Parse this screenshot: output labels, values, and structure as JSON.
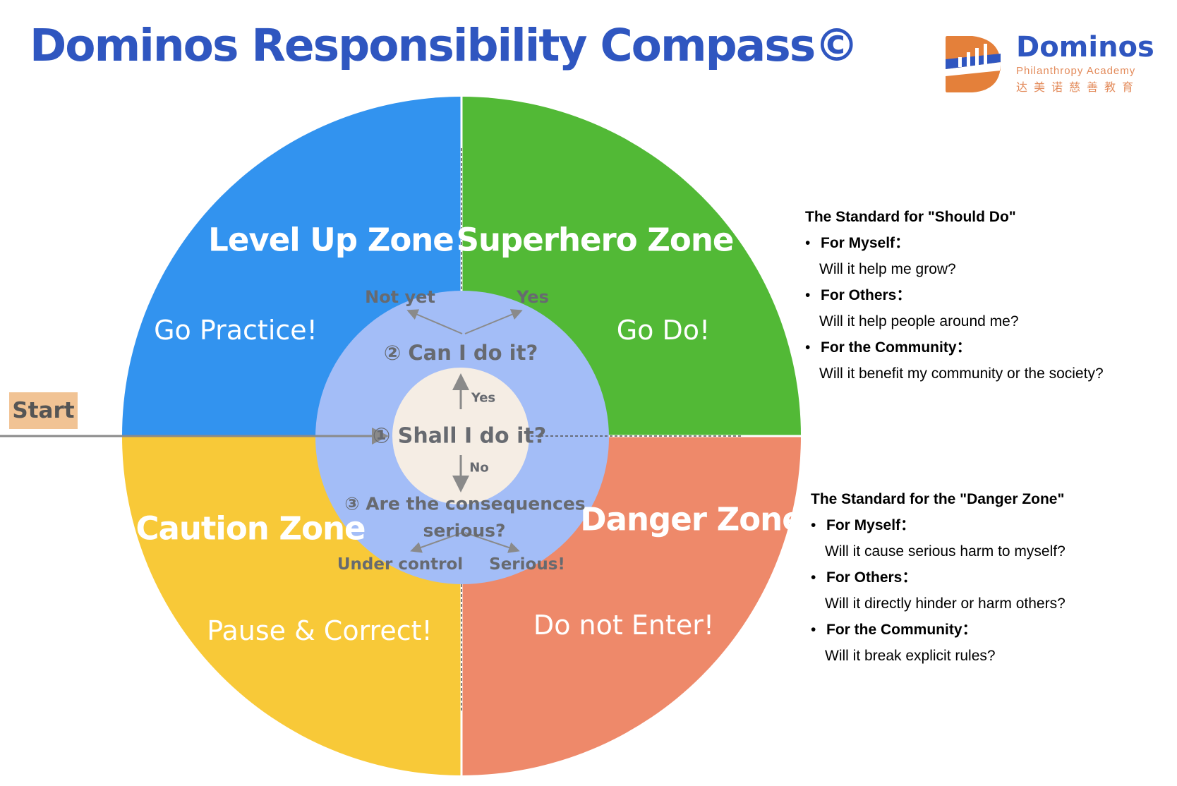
{
  "title": "Dominos Responsibility Compass©",
  "logo": {
    "name": "Dominos",
    "subtitle": "Philanthropy Academy",
    "chinese": "达美诺慈善教育",
    "colors": {
      "orange": "#e4803a",
      "blue": "#2f56c0"
    }
  },
  "start_label": "Start",
  "zones": {
    "level_up": {
      "name": "Level Up Zone",
      "action": "Go Practice!",
      "color": "#3293ef"
    },
    "superhero": {
      "name": "Superhero Zone",
      "action": "Go Do!",
      "color": "#52b936"
    },
    "caution": {
      "name": "Caution Zone",
      "action": "Pause & Correct!",
      "color": "#f8c938"
    },
    "danger": {
      "name": "Danger Zone",
      "action": "Do not Enter!",
      "color": "#ee896a"
    }
  },
  "center": {
    "q1": "① Shall I do it?",
    "q2": "② Can I do it?",
    "q3_line1": "③ Are the consequences",
    "q3_line2": "serious?",
    "yes_up": "Yes",
    "no_down": "No",
    "not_yet": "Not yet",
    "yes": "Yes",
    "under_control": "Under control",
    "serious": "Serious!",
    "colors": {
      "ring": "#a3bdf7",
      "core": "#f5ede4",
      "text": "#676a70"
    }
  },
  "should_do": {
    "heading": "The Standard for \"Should Do\"",
    "items": [
      {
        "label": "For Myself：",
        "question": "Will it help me grow?"
      },
      {
        "label": "For Others：",
        "question": "Will it help people around me?"
      },
      {
        "label": "For the Community：",
        "question": "Will it benefit my community or the society?"
      }
    ]
  },
  "danger_standard": {
    "heading": "The Standard for the \"Danger Zone\"",
    "items": [
      {
        "label": "For Myself：",
        "question": "Will it cause serious harm to myself?"
      },
      {
        "label": "For Others：",
        "question": "Will it directly hinder or harm others?"
      },
      {
        "label": "For the Community：",
        "question": "Will it break explicit rules?"
      }
    ]
  }
}
